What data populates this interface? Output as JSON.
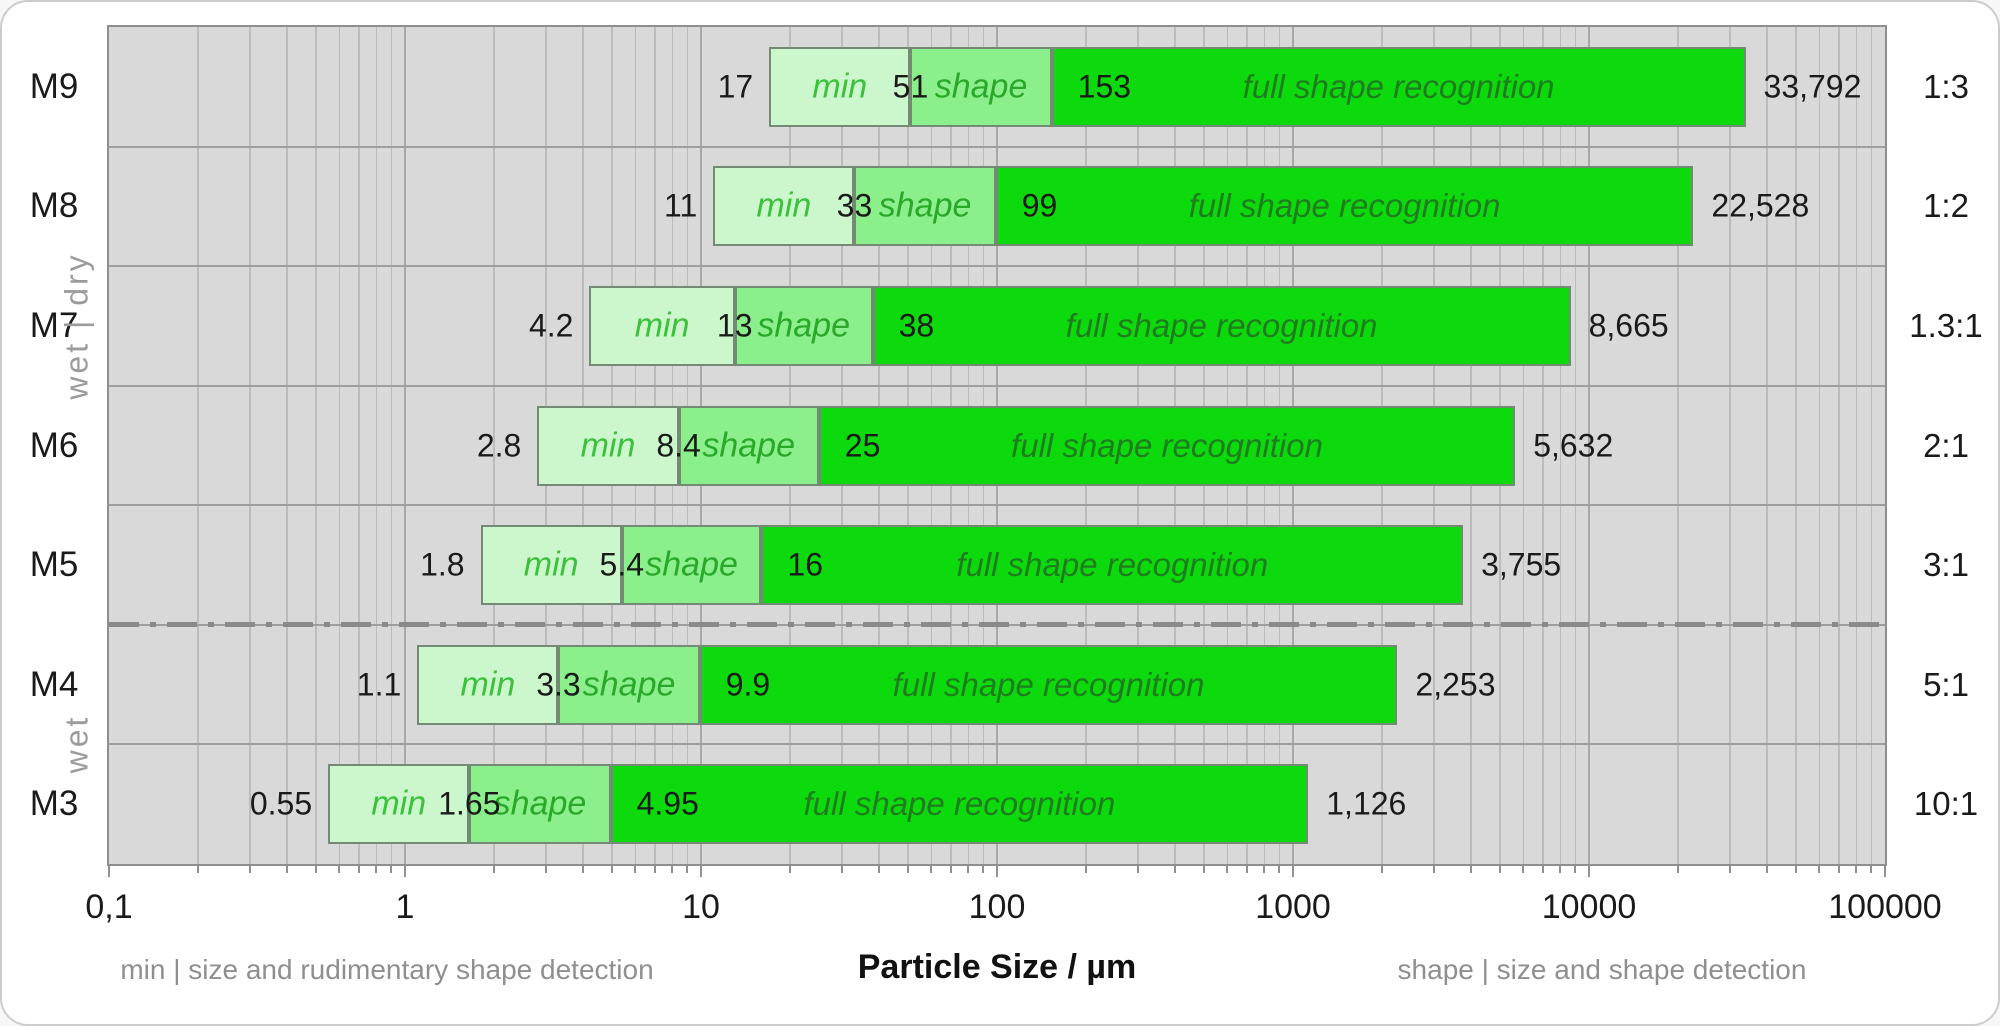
{
  "chart_data": {
    "type": "bar",
    "orientation": "horizontal",
    "x_scale": "log",
    "x_min": 0.1,
    "x_max": 100000,
    "xlabel": "Particle Size / µm",
    "x_tick_labels": [
      "0,1",
      "1",
      "10",
      "100",
      "1000",
      "10000",
      "100000"
    ],
    "x_tick_values": [
      0.1,
      1,
      10,
      100,
      1000,
      10000,
      100000
    ],
    "grid": "vertical log minor gridlines on",
    "legend_position": "none",
    "segment_names": [
      "min",
      "shape",
      "full shape recognition"
    ],
    "categories": [
      "M9",
      "M8",
      "M7",
      "M6",
      "M5",
      "M4",
      "M3"
    ],
    "rows": [
      {
        "category": "M9",
        "min_from": 17,
        "shape_from": 51,
        "full_from": 153,
        "max": 33792,
        "display": {
          "min_from": "17",
          "shape_from": "51",
          "full_from": "153",
          "max": "33,792"
        },
        "ratio": "1:3"
      },
      {
        "category": "M8",
        "min_from": 11,
        "shape_from": 33,
        "full_from": 99,
        "max": 22528,
        "display": {
          "min_from": "11",
          "shape_from": "33",
          "full_from": "99",
          "max": "22,528"
        },
        "ratio": "1:2"
      },
      {
        "category": "M7",
        "min_from": 4.2,
        "shape_from": 13,
        "full_from": 38,
        "max": 8665,
        "display": {
          "min_from": "4.2",
          "shape_from": "13",
          "full_from": "38",
          "max": "8,665"
        },
        "ratio": "1.3:1"
      },
      {
        "category": "M6",
        "min_from": 2.8,
        "shape_from": 8.4,
        "full_from": 25,
        "max": 5632,
        "display": {
          "min_from": "2.8",
          "shape_from": "8.4",
          "full_from": "25",
          "max": "5,632"
        },
        "ratio": "2:1"
      },
      {
        "category": "M5",
        "min_from": 1.8,
        "shape_from": 5.4,
        "full_from": 16,
        "max": 3755,
        "display": {
          "min_from": "1.8",
          "shape_from": "5.4",
          "full_from": "16",
          "max": "3,755"
        },
        "ratio": "3:1"
      },
      {
        "category": "M4",
        "min_from": 1.1,
        "shape_from": 3.3,
        "full_from": 9.9,
        "max": 2253,
        "display": {
          "min_from": "1.1",
          "shape_from": "3.3",
          "full_from": "9.9",
          "max": "2,253"
        },
        "ratio": "5:1"
      },
      {
        "category": "M3",
        "min_from": 0.55,
        "shape_from": 1.65,
        "full_from": 4.95,
        "max": 1126,
        "display": {
          "min_from": "0.55",
          "shape_from": "1.65",
          "full_from": "4.95",
          "max": "1,126"
        },
        "ratio": "10:1"
      }
    ],
    "groups": [
      {
        "label": "wet | dry",
        "first_row": 0,
        "last_row": 4
      },
      {
        "label": "wet",
        "first_row": 5,
        "last_row": 6
      }
    ],
    "divider_after_row_index": 4
  },
  "axis": {
    "title": "Particle Size / µm"
  },
  "notes": {
    "left": "min | size and rudimentary shape detection",
    "right": "shape | size and shape detection"
  },
  "colors": {
    "plot_bg": "#d9d9d9",
    "minor_grid": "#bcbcbc",
    "major_grid": "#a8a8a8",
    "row_separator": "#9e9e9e",
    "plot_border": "#8f8f8f",
    "bar_border": "#758a75",
    "min_fill": "#ccf6cc",
    "shape_fill": "#8bef8b",
    "full_fill": "#0cda0c",
    "min_text": "#3bc13b",
    "shape_text": "#2aa82a",
    "full_text": "#1f7d1f",
    "number_text": "#1a1a1a",
    "muted_text": "#909090",
    "divider": "#8a8a8a"
  }
}
